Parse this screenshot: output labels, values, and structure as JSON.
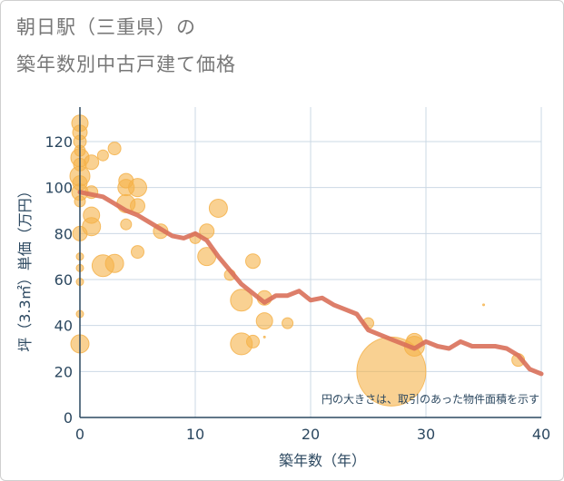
{
  "title_line1": "朝日駅（三重県）の",
  "title_line2": "築年数別中古戸建て価格",
  "chart_data": {
    "type": "scatter",
    "xlabel": "築年数（年）",
    "ylabel": "坪（3.3㎡）単価（万円）",
    "xlim": [
      0,
      40
    ],
    "ylim": [
      0,
      135
    ],
    "xticks": [
      0,
      10,
      20,
      30,
      40
    ],
    "yticks": [
      0,
      20,
      40,
      60,
      80,
      100,
      120
    ],
    "note": "円の大きさは、取引のあった物件面積を示す",
    "colors": {
      "bubble": "#f5b24a",
      "trend": "#d9705a",
      "grid": "#cbd8e4",
      "axis": "#2c4860"
    },
    "bubbles": [
      {
        "x": 0,
        "y": 128,
        "s": 9
      },
      {
        "x": 0,
        "y": 124,
        "s": 8
      },
      {
        "x": 0,
        "y": 120,
        "s": 7
      },
      {
        "x": 0,
        "y": 116,
        "s": 6
      },
      {
        "x": 0,
        "y": 113,
        "s": 10
      },
      {
        "x": 0,
        "y": 110,
        "s": 7
      },
      {
        "x": 0,
        "y": 105,
        "s": 11
      },
      {
        "x": 0,
        "y": 102,
        "s": 8
      },
      {
        "x": 0,
        "y": 98,
        "s": 9
      },
      {
        "x": 0,
        "y": 94,
        "s": 6
      },
      {
        "x": 0,
        "y": 80,
        "s": 8
      },
      {
        "x": 0,
        "y": 70,
        "s": 4
      },
      {
        "x": 0,
        "y": 65,
        "s": 4
      },
      {
        "x": 0,
        "y": 59,
        "s": 4
      },
      {
        "x": 0,
        "y": 45,
        "s": 4
      },
      {
        "x": 0,
        "y": 32,
        "s": 10
      },
      {
        "x": 1,
        "y": 111,
        "s": 8
      },
      {
        "x": 1,
        "y": 98,
        "s": 7
      },
      {
        "x": 1,
        "y": 88,
        "s": 9
      },
      {
        "x": 1,
        "y": 83,
        "s": 10
      },
      {
        "x": 2,
        "y": 114,
        "s": 6
      },
      {
        "x": 2,
        "y": 66,
        "s": 12
      },
      {
        "x": 3,
        "y": 117,
        "s": 7
      },
      {
        "x": 3,
        "y": 67,
        "s": 10
      },
      {
        "x": 4,
        "y": 103,
        "s": 8
      },
      {
        "x": 4,
        "y": 100,
        "s": 9
      },
      {
        "x": 4,
        "y": 93,
        "s": 10
      },
      {
        "x": 4,
        "y": 84,
        "s": 6
      },
      {
        "x": 5,
        "y": 100,
        "s": 10
      },
      {
        "x": 5,
        "y": 92,
        "s": 8
      },
      {
        "x": 5,
        "y": 72,
        "s": 7
      },
      {
        "x": 7,
        "y": 81,
        "s": 8
      },
      {
        "x": 10,
        "y": 78,
        "s": 6
      },
      {
        "x": 11,
        "y": 81,
        "s": 8
      },
      {
        "x": 11,
        "y": 70,
        "s": 10
      },
      {
        "x": 12,
        "y": 91,
        "s": 10
      },
      {
        "x": 13,
        "y": 62,
        "s": 6
      },
      {
        "x": 14,
        "y": 51,
        "s": 12
      },
      {
        "x": 14,
        "y": 32,
        "s": 12
      },
      {
        "x": 15,
        "y": 68,
        "s": 8
      },
      {
        "x": 15,
        "y": 33,
        "s": 7
      },
      {
        "x": 16,
        "y": 52,
        "s": 8
      },
      {
        "x": 16,
        "y": 42,
        "s": 9
      },
      {
        "x": 16,
        "y": 35,
        "s": 1
      },
      {
        "x": 18,
        "y": 41,
        "s": 6
      },
      {
        "x": 25,
        "y": 41,
        "s": 6
      },
      {
        "x": 27,
        "y": 20,
        "s": 38
      },
      {
        "x": 29,
        "y": 31,
        "s": 11
      },
      {
        "x": 29,
        "y": 33,
        "s": 9
      },
      {
        "x": 35,
        "y": 49,
        "s": 1
      },
      {
        "x": 38,
        "y": 25,
        "s": 7
      }
    ],
    "trend": {
      "x": [
        0,
        1,
        2,
        3,
        4,
        5,
        6,
        7,
        8,
        9,
        10,
        11,
        12,
        13,
        14,
        15,
        16,
        17,
        18,
        19,
        20,
        21,
        22,
        23,
        24,
        25,
        26,
        27,
        28,
        29,
        30,
        31,
        32,
        33,
        34,
        35,
        36,
        37,
        38,
        39,
        40
      ],
      "y": [
        98,
        97,
        96,
        93,
        90,
        88,
        85,
        82,
        79,
        78,
        80,
        77,
        70,
        64,
        58,
        54,
        50,
        53,
        53,
        55,
        51,
        52,
        49,
        47,
        45,
        38,
        36,
        34,
        32,
        30,
        33,
        31,
        30,
        33,
        31,
        31,
        31,
        30,
        27,
        21,
        19
      ]
    }
  }
}
